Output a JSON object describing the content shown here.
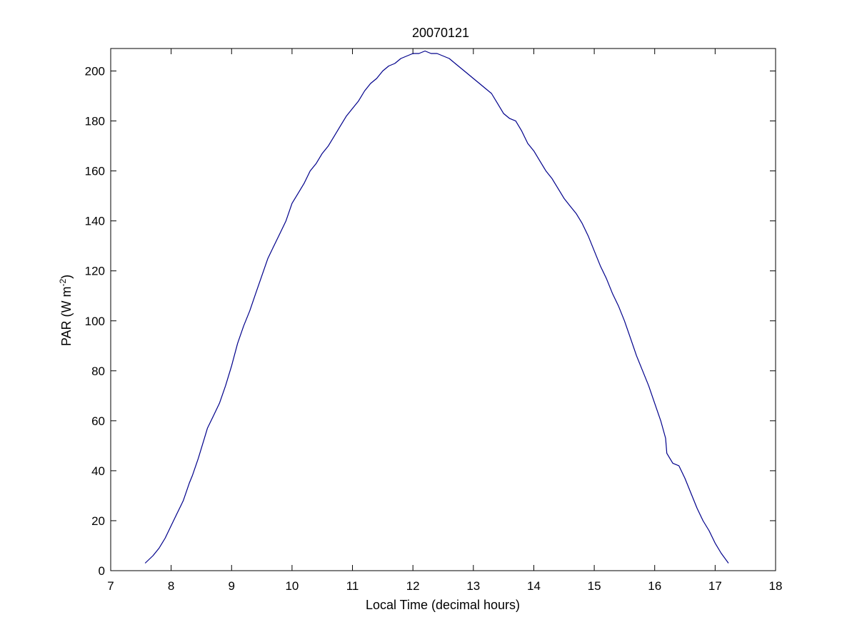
{
  "chart_data": {
    "type": "line",
    "title": "20070121",
    "xlabel": "Local Time (decimal hours)",
    "ylabel_main": "PAR (W m",
    "ylabel_sup": "-2",
    "ylabel_end": ")",
    "xlim": [
      7,
      18
    ],
    "ylim": [
      0,
      209
    ],
    "xticks": [
      7,
      8,
      9,
      10,
      11,
      12,
      13,
      14,
      15,
      16,
      17,
      18
    ],
    "yticks": [
      0,
      20,
      40,
      60,
      80,
      100,
      120,
      140,
      160,
      180,
      200
    ],
    "grid": false,
    "line_color": "#00008b",
    "series": [
      {
        "x": [
          7.57,
          7.7,
          7.8,
          7.9,
          8.0,
          8.1,
          8.2,
          8.3,
          8.35,
          8.45,
          8.55,
          8.6,
          8.7,
          8.8,
          8.9,
          9.0,
          9.1,
          9.2,
          9.3,
          9.4,
          9.5,
          9.6,
          9.7,
          9.8,
          9.9,
          10.0,
          10.1,
          10.2,
          10.3,
          10.4,
          10.5,
          10.6,
          10.7,
          10.8,
          10.9,
          11.0,
          11.1,
          11.2,
          11.3,
          11.4,
          11.5,
          11.6,
          11.7,
          11.8,
          11.9,
          12.0,
          12.1,
          12.2,
          12.3,
          12.4,
          12.5,
          12.6,
          12.7,
          12.8,
          12.9,
          13.0,
          13.1,
          13.2,
          13.3,
          13.4,
          13.5,
          13.6,
          13.7,
          13.8,
          13.9,
          14.0,
          14.1,
          14.2,
          14.3,
          14.4,
          14.5,
          14.6,
          14.7,
          14.8,
          14.9,
          15.0,
          15.1,
          15.2,
          15.3,
          15.4,
          15.5,
          15.6,
          15.7,
          15.8,
          15.9,
          16.0,
          16.1,
          16.18,
          16.2,
          16.3,
          16.4,
          16.5,
          16.6,
          16.7,
          16.8,
          16.9,
          17.0,
          17.1,
          17.22
        ],
        "y": [
          3,
          6,
          9,
          13,
          18,
          23,
          28,
          35,
          38,
          45,
          53,
          57,
          62,
          67,
          74,
          82,
          91,
          98,
          104,
          111,
          118,
          125,
          130,
          135,
          140,
          147,
          151,
          155,
          160,
          163,
          167,
          170,
          174,
          178,
          182,
          185,
          188,
          192,
          195,
          197,
          200,
          202,
          203,
          205,
          206,
          207,
          207,
          208,
          207,
          207,
          206,
          205,
          203,
          201,
          199,
          197,
          195,
          193,
          191,
          187,
          183,
          181,
          180,
          176,
          171,
          168,
          164,
          160,
          157,
          153,
          149,
          146,
          143,
          139,
          134,
          128,
          122,
          117,
          111,
          106,
          100,
          93,
          86,
          80,
          74,
          67,
          60,
          53,
          47,
          43,
          42,
          37,
          31,
          25,
          20,
          16,
          11,
          7,
          3
        ]
      }
    ]
  }
}
